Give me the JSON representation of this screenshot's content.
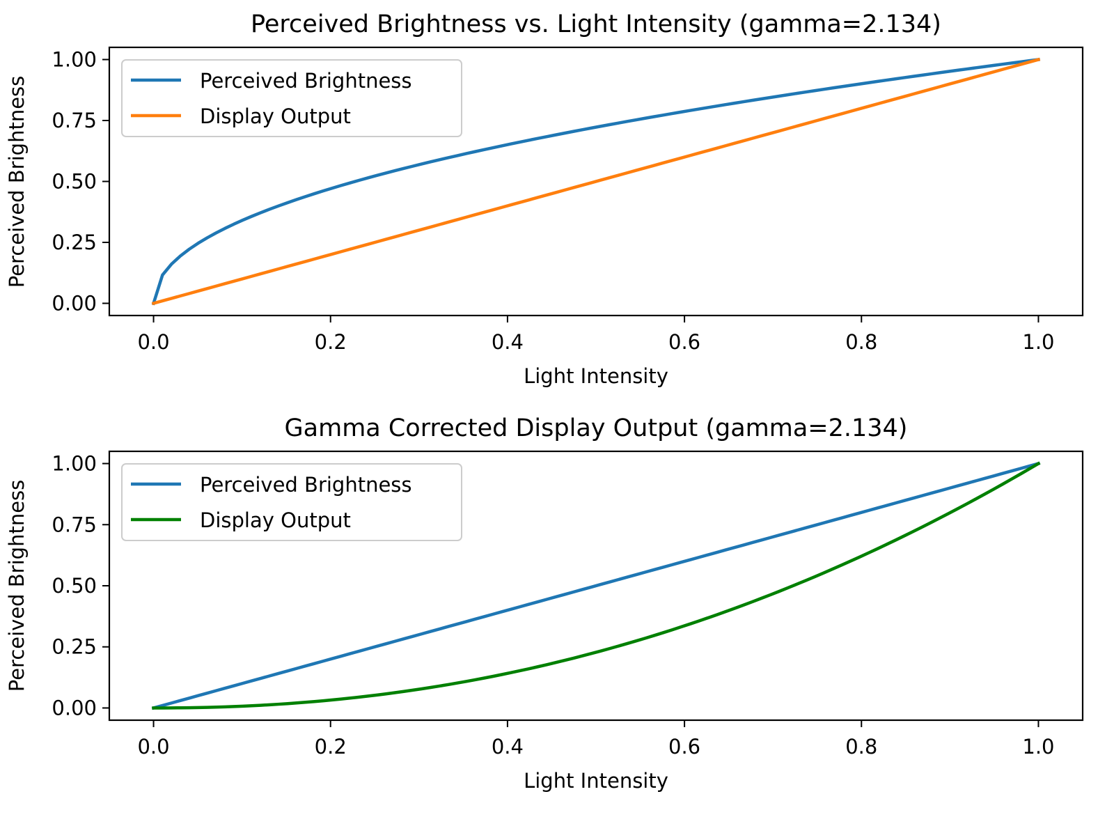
{
  "chart_data": [
    {
      "type": "line",
      "title": "Perceived Brightness vs. Light Intensity (gamma=2.134)",
      "xlabel": "Light Intensity",
      "ylabel": "Perceived Brightness",
      "xlim": [
        -0.05,
        1.05
      ],
      "ylim": [
        -0.05,
        1.05
      ],
      "xticks": [
        0.0,
        0.2,
        0.4,
        0.6,
        0.8,
        1.0
      ],
      "xtick_labels": [
        "0.0",
        "0.2",
        "0.4",
        "0.6",
        "0.8",
        "1.0"
      ],
      "yticks": [
        0.0,
        0.25,
        0.5,
        0.75,
        1.0
      ],
      "ytick_labels": [
        "0.00",
        "0.25",
        "0.50",
        "0.75",
        "1.00"
      ],
      "grid": false,
      "legend_position": "top-left",
      "gamma": 2.134,
      "n_points": 100,
      "series": [
        {
          "name": "Perceived Brightness",
          "color": "#1f77b4",
          "function": "x^(1/gamma)",
          "x": [
            0,
            0.01,
            0.02,
            0.05,
            0.1,
            0.2,
            0.3,
            0.4,
            0.5,
            0.6,
            0.7,
            0.8,
            0.9,
            1.0
          ],
          "y": [
            0,
            0.116,
            0.16,
            0.246,
            0.34,
            0.47,
            0.569,
            0.651,
            0.723,
            0.787,
            0.846,
            0.901,
            0.952,
            1.0
          ]
        },
        {
          "name": "Display Output",
          "color": "#ff7f0e",
          "function": "x",
          "x": [
            0,
            0.2,
            0.4,
            0.6,
            0.8,
            1.0
          ],
          "y": [
            0,
            0.2,
            0.4,
            0.6,
            0.8,
            1.0
          ]
        }
      ]
    },
    {
      "type": "line",
      "title": "Gamma Corrected Display Output (gamma=2.134)",
      "xlabel": "Light Intensity",
      "ylabel": "Perceived Brightness",
      "xlim": [
        -0.05,
        1.05
      ],
      "ylim": [
        -0.05,
        1.05
      ],
      "xticks": [
        0.0,
        0.2,
        0.4,
        0.6,
        0.8,
        1.0
      ],
      "xtick_labels": [
        "0.0",
        "0.2",
        "0.4",
        "0.6",
        "0.8",
        "1.0"
      ],
      "yticks": [
        0.0,
        0.25,
        0.5,
        0.75,
        1.0
      ],
      "ytick_labels": [
        "0.00",
        "0.25",
        "0.50",
        "0.75",
        "1.00"
      ],
      "grid": false,
      "legend_position": "top-left",
      "gamma": 2.134,
      "n_points": 100,
      "series": [
        {
          "name": "Perceived Brightness",
          "color": "#1f77b4",
          "function": "x",
          "x": [
            0,
            0.2,
            0.4,
            0.6,
            0.8,
            1.0
          ],
          "y": [
            0,
            0.2,
            0.4,
            0.6,
            0.8,
            1.0
          ]
        },
        {
          "name": "Display Output",
          "color": "#008000",
          "function": "x^gamma",
          "x": [
            0,
            0.1,
            0.2,
            0.3,
            0.4,
            0.5,
            0.6,
            0.7,
            0.8,
            0.9,
            1.0
          ],
          "y": [
            0,
            0.007,
            0.032,
            0.077,
            0.142,
            0.228,
            0.336,
            0.467,
            0.621,
            0.798,
            1.0
          ]
        }
      ]
    }
  ]
}
